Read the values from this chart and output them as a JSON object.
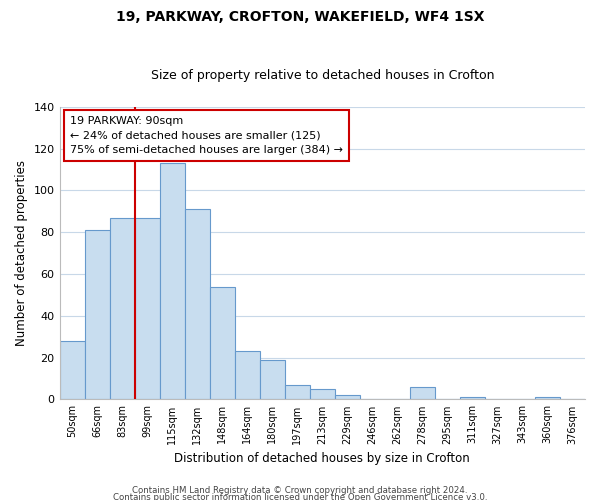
{
  "title": "19, PARKWAY, CROFTON, WAKEFIELD, WF4 1SX",
  "subtitle": "Size of property relative to detached houses in Crofton",
  "xlabel": "Distribution of detached houses by size in Crofton",
  "ylabel": "Number of detached properties",
  "categories": [
    "50sqm",
    "66sqm",
    "83sqm",
    "99sqm",
    "115sqm",
    "132sqm",
    "148sqm",
    "164sqm",
    "180sqm",
    "197sqm",
    "213sqm",
    "229sqm",
    "246sqm",
    "262sqm",
    "278sqm",
    "295sqm",
    "311sqm",
    "327sqm",
    "343sqm",
    "360sqm",
    "376sqm"
  ],
  "values": [
    28,
    81,
    87,
    87,
    113,
    91,
    54,
    23,
    19,
    7,
    5,
    2,
    0,
    0,
    6,
    0,
    1,
    0,
    0,
    1,
    0
  ],
  "bar_color": "#c8ddef",
  "bar_edge_color": "#6699cc",
  "vline_x_idx": 2.5,
  "vline_color": "#cc0000",
  "annotation_title": "19 PARKWAY: 90sqm",
  "annotation_line1": "← 24% of detached houses are smaller (125)",
  "annotation_line2": "75% of semi-detached houses are larger (384) →",
  "annotation_box_color": "#ffffff",
  "annotation_box_edge": "#cc0000",
  "ylim": [
    0,
    140
  ],
  "yticks": [
    0,
    20,
    40,
    60,
    80,
    100,
    120,
    140
  ],
  "footer1": "Contains HM Land Registry data © Crown copyright and database right 2024.",
  "footer2": "Contains public sector information licensed under the Open Government Licence v3.0.",
  "bg_color": "#ffffff",
  "grid_color": "#c8d8e8"
}
